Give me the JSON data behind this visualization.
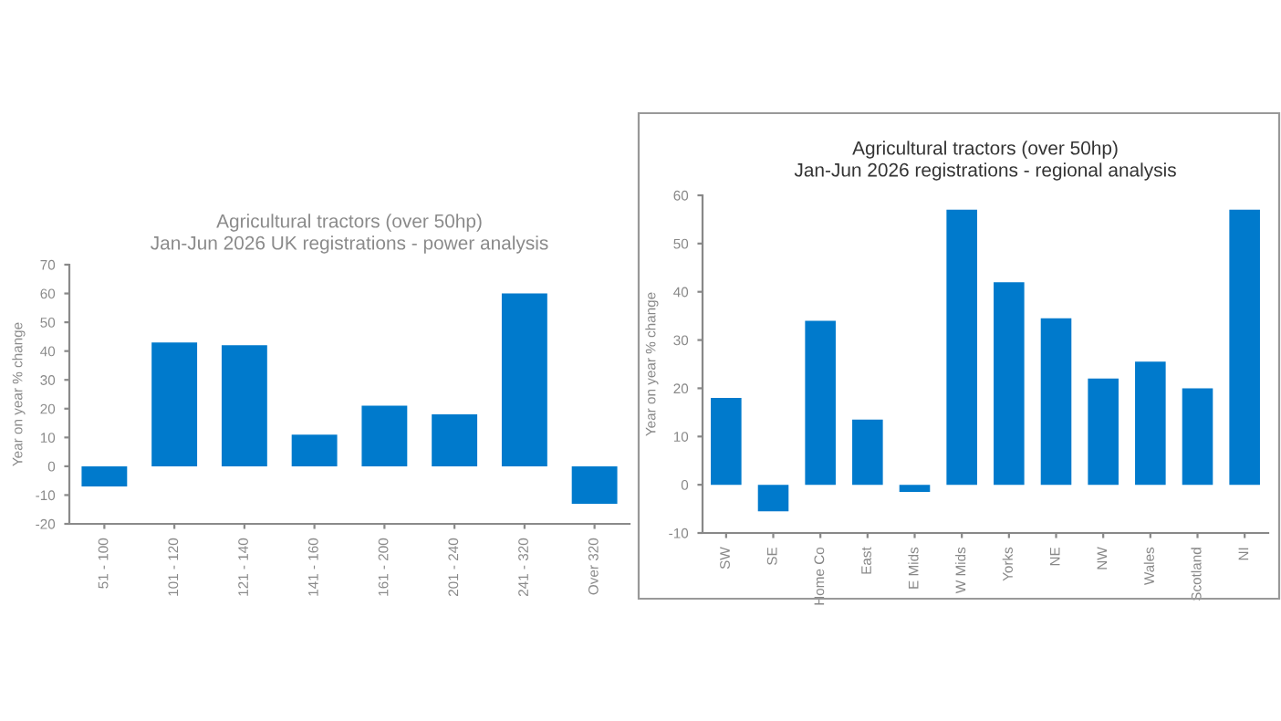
{
  "chart_data": [
    {
      "type": "bar",
      "title": "Agricultural tractors (over 50hp)",
      "subtitle": "Jan-Jun 2026 UK registrations - power analysis",
      "ylabel": "Year on year % change",
      "categories": [
        "51 - 100",
        "101 - 120",
        "121 - 140",
        "141 - 160",
        "161 - 200",
        "201 - 240",
        "241 - 320",
        "Over 320"
      ],
      "values": [
        -7,
        43,
        42,
        11,
        21,
        18,
        60,
        -13
      ],
      "color": "#007acc",
      "ylim": [
        -20,
        70
      ],
      "yticks": [
        -20,
        -10,
        0,
        10,
        20,
        30,
        40,
        50,
        60,
        70
      ],
      "grid": false,
      "legend": false
    },
    {
      "type": "bar",
      "title": "Agricultural tractors (over 50hp)",
      "subtitle": "Jan-Jun 2026 registrations - regional analysis",
      "ylabel": "Year on year % change",
      "categories": [
        "SW",
        "SE",
        "Home Co",
        "East",
        "E Mids",
        "W Mids",
        "Yorks",
        "NE",
        "NW",
        "Wales",
        "Scotland",
        "NI"
      ],
      "values": [
        18,
        -5.5,
        34,
        13.5,
        -1.5,
        57,
        42,
        34.5,
        22,
        25.5,
        20,
        57
      ],
      "color": "#007acc",
      "ylim": [
        -10,
        60
      ],
      "yticks": [
        -10,
        0,
        10,
        20,
        30,
        40,
        50,
        60
      ],
      "grid": false,
      "legend": false
    }
  ]
}
